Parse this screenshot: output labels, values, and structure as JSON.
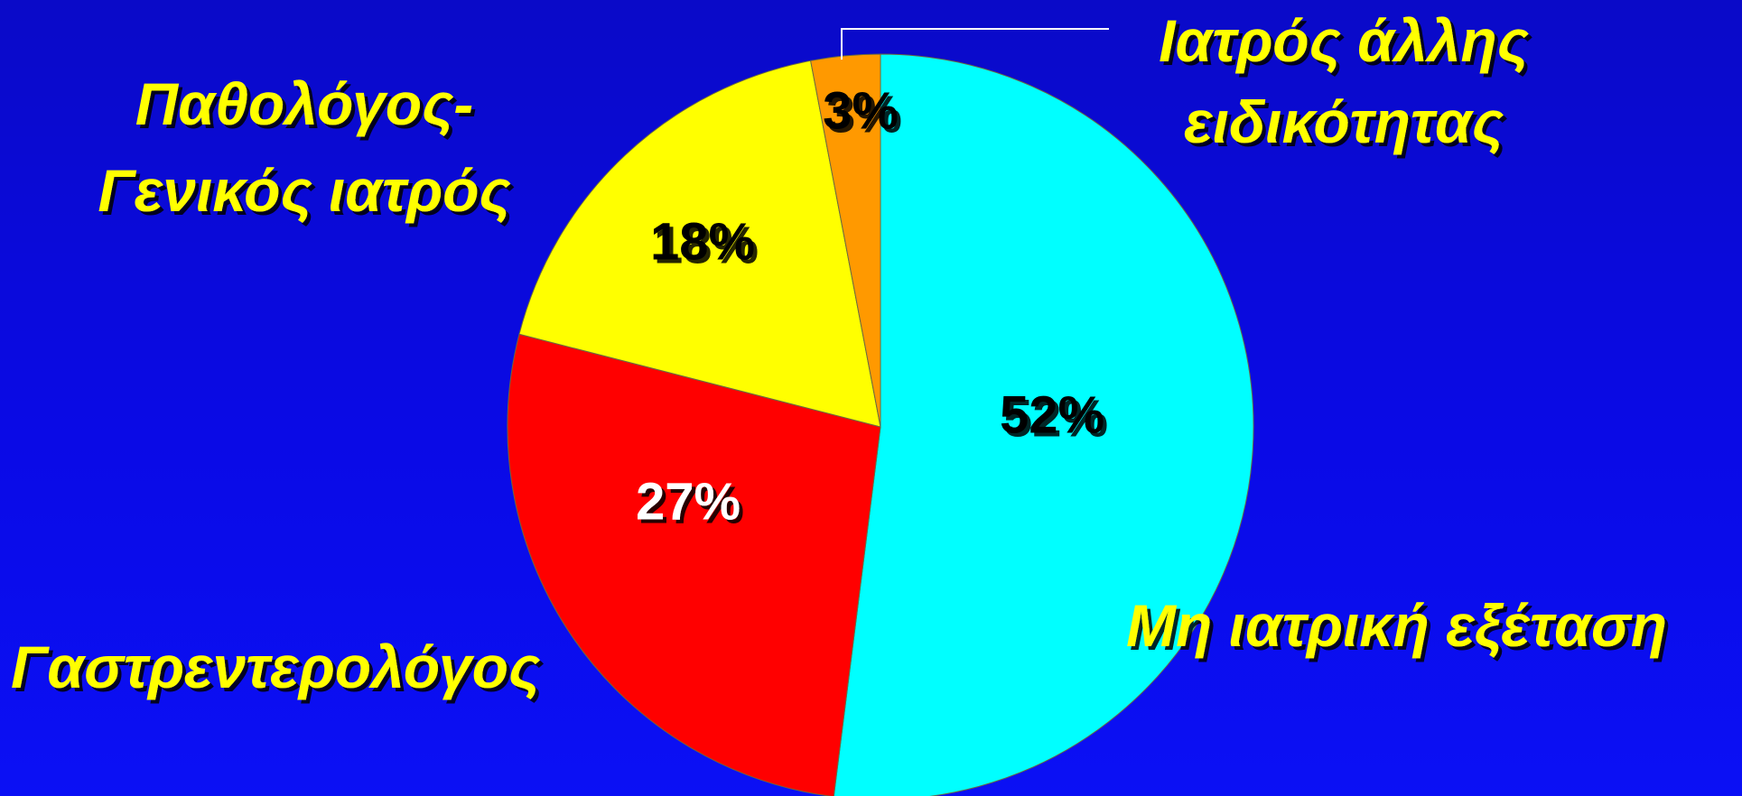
{
  "colors": {
    "background": "#0a0ae0",
    "label_text": "#ffff00",
    "leader_line": "#ffffff"
  },
  "chart_data": {
    "type": "pie",
    "title": "",
    "start": "12 o'clock",
    "direction": "clockwise",
    "slices": [
      {
        "category": "Μη ιατρική εξέταση",
        "value": 52,
        "label": "52%",
        "color": "#00ffff",
        "label_color": "#000000"
      },
      {
        "category": "Γαστρεντερολόγος",
        "value": 27,
        "label": "27%",
        "color": "#ff0000",
        "label_color": "#ffffff"
      },
      {
        "category_lines": [
          "Παθολόγος-",
          "Γενικός ιατρός"
        ],
        "value": 18,
        "label": "18%",
        "color": "#ffff00",
        "label_color": "#000000"
      },
      {
        "category_lines": [
          "Ιατρός άλλης",
          "ειδικότητας"
        ],
        "value": 3,
        "label": "3%",
        "color": "#ff9900",
        "label_color": "#000000"
      }
    ]
  }
}
